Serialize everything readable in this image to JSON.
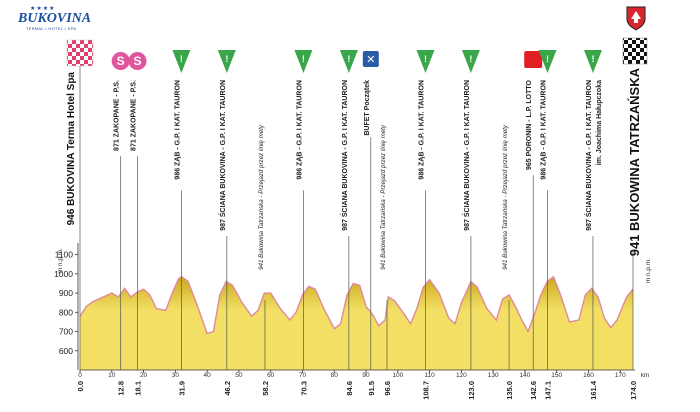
{
  "logo": {
    "stars": "★★★★",
    "name": "BUKOVINA",
    "tagline": "TERMAL • HOTEL • SPA"
  },
  "crest_icon": "coat-of-arms-icon",
  "colors": {
    "profile_fill": "#f2df63",
    "profile_fill_dark": "#c9a81f",
    "profile_outline": "#e08a9a",
    "start_flag": "#e0406a",
    "sprint": "#e0559c",
    "kom": "#3aa64a",
    "feed": "#2b5ca8",
    "bonus": "#e02020"
  },
  "chart_data": {
    "type": "area",
    "y_axis_label": "m n.p.m.",
    "y_ticks": [
      600,
      700,
      800,
      900,
      1000,
      1100
    ],
    "ylim": [
      500,
      1150
    ],
    "x_unit": "km",
    "x_ticks": [
      0,
      10,
      20,
      30,
      40,
      50,
      60,
      70,
      80,
      90,
      100,
      110,
      120,
      130,
      140,
      150,
      160,
      170
    ],
    "xlim": [
      0,
      174
    ],
    "profile": [
      {
        "km": 0,
        "alt": 780
      },
      {
        "km": 2,
        "alt": 830
      },
      {
        "km": 4,
        "alt": 855
      },
      {
        "km": 6,
        "alt": 870
      },
      {
        "km": 8,
        "alt": 885
      },
      {
        "km": 10,
        "alt": 900
      },
      {
        "km": 12,
        "alt": 880
      },
      {
        "km": 13,
        "alt": 900
      },
      {
        "km": 14,
        "alt": 925
      },
      {
        "km": 16,
        "alt": 880
      },
      {
        "km": 18,
        "alt": 905
      },
      {
        "km": 20,
        "alt": 920
      },
      {
        "km": 22,
        "alt": 890
      },
      {
        "km": 24,
        "alt": 820
      },
      {
        "km": 27,
        "alt": 810
      },
      {
        "km": 29,
        "alt": 900
      },
      {
        "km": 31,
        "alt": 975
      },
      {
        "km": 32,
        "alt": 985
      },
      {
        "km": 34,
        "alt": 960
      },
      {
        "km": 37,
        "alt": 830
      },
      {
        "km": 40,
        "alt": 690
      },
      {
        "km": 42,
        "alt": 700
      },
      {
        "km": 44,
        "alt": 890
      },
      {
        "km": 46,
        "alt": 960
      },
      {
        "km": 48,
        "alt": 940
      },
      {
        "km": 51,
        "alt": 850
      },
      {
        "km": 54,
        "alt": 780
      },
      {
        "km": 56,
        "alt": 810
      },
      {
        "km": 58,
        "alt": 900
      },
      {
        "km": 60,
        "alt": 900
      },
      {
        "km": 63,
        "alt": 820
      },
      {
        "km": 66,
        "alt": 760
      },
      {
        "km": 68,
        "alt": 800
      },
      {
        "km": 70,
        "alt": 890
      },
      {
        "km": 72,
        "alt": 935
      },
      {
        "km": 74,
        "alt": 920
      },
      {
        "km": 77,
        "alt": 810
      },
      {
        "km": 80,
        "alt": 715
      },
      {
        "km": 82,
        "alt": 740
      },
      {
        "km": 84,
        "alt": 890
      },
      {
        "km": 86,
        "alt": 950
      },
      {
        "km": 88,
        "alt": 940
      },
      {
        "km": 90,
        "alt": 830
      },
      {
        "km": 92,
        "alt": 790
      },
      {
        "km": 94,
        "alt": 730
      },
      {
        "km": 96,
        "alt": 760
      },
      {
        "km": 97,
        "alt": 880
      },
      {
        "km": 99,
        "alt": 860
      },
      {
        "km": 102,
        "alt": 790
      },
      {
        "km": 104,
        "alt": 740
      },
      {
        "km": 106,
        "alt": 820
      },
      {
        "km": 108,
        "alt": 930
      },
      {
        "km": 110,
        "alt": 970
      },
      {
        "km": 113,
        "alt": 900
      },
      {
        "km": 116,
        "alt": 770
      },
      {
        "km": 118,
        "alt": 740
      },
      {
        "km": 120,
        "alt": 850
      },
      {
        "km": 123,
        "alt": 960
      },
      {
        "km": 125,
        "alt": 930
      },
      {
        "km": 128,
        "alt": 820
      },
      {
        "km": 131,
        "alt": 760
      },
      {
        "km": 133,
        "alt": 870
      },
      {
        "km": 135,
        "alt": 890
      },
      {
        "km": 137,
        "alt": 830
      },
      {
        "km": 139,
        "alt": 760
      },
      {
        "km": 141,
        "alt": 700
      },
      {
        "km": 143,
        "alt": 790
      },
      {
        "km": 145,
        "alt": 890
      },
      {
        "km": 147,
        "alt": 960
      },
      {
        "km": 149,
        "alt": 985
      },
      {
        "km": 151,
        "alt": 900
      },
      {
        "km": 154,
        "alt": 750
      },
      {
        "km": 157,
        "alt": 760
      },
      {
        "km": 159,
        "alt": 890
      },
      {
        "km": 161,
        "alt": 925
      },
      {
        "km": 163,
        "alt": 880
      },
      {
        "km": 165,
        "alt": 770
      },
      {
        "km": 167,
        "alt": 720
      },
      {
        "km": 169,
        "alt": 760
      },
      {
        "km": 172,
        "alt": 880
      },
      {
        "km": 174,
        "alt": 920
      }
    ],
    "start": {
      "km": 0.0,
      "label": "946 BUKOVINA Terma Hotel Spa"
    },
    "finish": {
      "km": 174.0,
      "label": "941 BUKOWINA TATRZAŃSKA"
    },
    "points": [
      {
        "km": 12.8,
        "km_label": "12.8",
        "type": "sprint",
        "marker": "S",
        "label": "871 ZAKOPANE - P.S."
      },
      {
        "km": 18.1,
        "km_label": "18.1",
        "type": "sprint",
        "marker": "S",
        "label": "871 ZAKOPANE - P.S."
      },
      {
        "km": 31.9,
        "km_label": "31.9",
        "type": "kom",
        "marker": "!",
        "label": "986 ZĄB - G.P. I KAT. TAURON"
      },
      {
        "km": 46.2,
        "km_label": "46.2",
        "type": "kom",
        "marker": "!",
        "label": "987 ŚCIANA BUKOVINA - G.P. I KAT. TAURON"
      },
      {
        "km": 58.2,
        "km_label": "58.2",
        "type": "line",
        "marker": "",
        "label": "941 Bukowina Tatrzańska - Przejazd przez linię mety"
      },
      {
        "km": 70.3,
        "km_label": "70.3",
        "type": "kom",
        "marker": "!",
        "label": "986 ZĄB - G.P. I KAT. TAURON"
      },
      {
        "km": 84.6,
        "km_label": "84.6",
        "type": "kom",
        "marker": "!",
        "label": "987 ŚCIANA BUKOVINA - G.P. I KAT. TAURON"
      },
      {
        "km": 91.5,
        "km_label": "91.5",
        "type": "feed",
        "marker": "✕",
        "label": "BUFET Początek"
      },
      {
        "km": 96.6,
        "km_label": "96.6",
        "type": "line",
        "marker": "",
        "label": "941 Bukowina Tatrzańska - Przejazd przez linię mety"
      },
      {
        "km": 108.7,
        "km_label": "108.7",
        "type": "kom",
        "marker": "!",
        "label": "986 ZĄB - G.P. I KAT. TAURON"
      },
      {
        "km": 123.0,
        "km_label": "123.0",
        "type": "kom",
        "marker": "!",
        "label": "987 ŚCIANA BUKOVINA - G.P. I KAT. TAURON"
      },
      {
        "km": 135.0,
        "km_label": "135.0",
        "type": "line",
        "marker": "",
        "label": "941 Bukowina Tatrzańska - Przejazd przez linię mety"
      },
      {
        "km": 142.6,
        "km_label": "142.6",
        "type": "bonus",
        "marker": "",
        "label": "965 PORONIN - L.P. LOTTO"
      },
      {
        "km": 147.1,
        "km_label": "147.1",
        "type": "kom",
        "marker": "!",
        "label": "986 ZĄB - G.P. I KAT. TAURON"
      },
      {
        "km": 161.4,
        "km_label": "161.4",
        "type": "kom",
        "marker": "!",
        "label": "987 ŚCIANA BUKOVINA - G.P. I KAT. TAURON"
      }
    ],
    "extra_labels": [
      {
        "after_point": 14,
        "text": "im. Joachima Hałupczoka"
      }
    ],
    "start_km_label": "0.0",
    "finish_km_label": "174.0"
  }
}
